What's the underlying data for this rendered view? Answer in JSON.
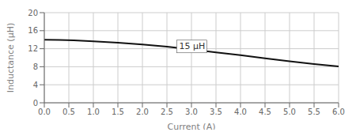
{
  "chart_data": {
    "type": "line",
    "xlabel": "Current (A)",
    "ylabel": "Inductance (μH)",
    "x": [
      0.0,
      0.3,
      0.6,
      1.0,
      1.5,
      2.0,
      2.5,
      3.0,
      3.5,
      4.0,
      4.5,
      5.0,
      5.5,
      6.0
    ],
    "values": [
      14.0,
      13.95,
      13.85,
      13.65,
      13.35,
      12.95,
      12.45,
      11.85,
      11.2,
      10.55,
      9.85,
      9.2,
      8.6,
      8.05
    ],
    "color": "#111111",
    "xlim": [
      0,
      6.0
    ],
    "ylim": [
      0,
      20
    ],
    "xticks": [
      {
        "value": 0,
        "label": "0.0"
      },
      0.5,
      {
        "value": 1.0,
        "label": "1.0"
      },
      1.5,
      {
        "value": 2.0,
        "label": "2.0"
      },
      2.5,
      {
        "value": 3.0,
        "label": "3.0"
      },
      3.5,
      {
        "value": 4.0,
        "label": "4.0"
      },
      4.5,
      {
        "value": 5.0,
        "label": "5.0"
      },
      5.5,
      {
        "value": 6.0,
        "label": "6.0"
      }
    ],
    "yticks": [
      0,
      4,
      8,
      12,
      16,
      20
    ],
    "grid": true,
    "annotations": [
      {
        "text": "15 μH",
        "x": 2.7,
        "y": 12.5
      }
    ]
  }
}
